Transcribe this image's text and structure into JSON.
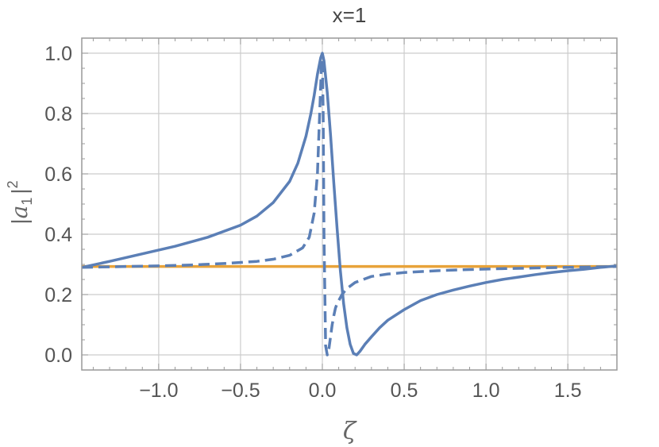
{
  "chart_data": {
    "type": "line",
    "title": "x=1",
    "xlabel": "ζ",
    "ylabel": {
      "bar_left": "|",
      "var": "a",
      "sub": "1",
      "bar_right": "|",
      "sup": "2"
    },
    "xlim": [
      -1.47,
      1.8
    ],
    "ylim": [
      -0.05,
      1.05
    ],
    "xticks": [
      -1.0,
      -0.5,
      0.0,
      0.5,
      1.0,
      1.5
    ],
    "xtick_labels": [
      "−1.0",
      "−0.5",
      "0.0",
      "0.5",
      "1.0",
      "1.5"
    ],
    "yticks": [
      0.0,
      0.2,
      0.4,
      0.6,
      0.8,
      1.0
    ],
    "ytick_labels": [
      "0.0",
      "0.2",
      "0.4",
      "0.6",
      "0.8",
      "1.0"
    ],
    "grid": true,
    "series": [
      {
        "style": "solid",
        "color": "#5b7fb6",
        "x": [
          -1.47,
          -1.3,
          -1.1,
          -0.9,
          -0.7,
          -0.5,
          -0.4,
          -0.3,
          -0.2,
          -0.15,
          -0.1,
          -0.07,
          -0.05,
          -0.03,
          -0.01,
          0.0,
          0.01,
          0.03,
          0.05,
          0.07,
          0.09,
          0.11,
          0.13,
          0.15,
          0.17,
          0.19,
          0.21,
          0.23,
          0.26,
          0.3,
          0.35,
          0.4,
          0.5,
          0.6,
          0.7,
          0.8,
          0.9,
          1.0,
          1.1,
          1.2,
          1.3,
          1.4,
          1.5,
          1.6,
          1.7,
          1.8
        ],
        "y": [
          0.29,
          0.31,
          0.335,
          0.36,
          0.39,
          0.43,
          0.46,
          0.505,
          0.575,
          0.635,
          0.725,
          0.8,
          0.86,
          0.93,
          0.985,
          1.0,
          0.975,
          0.87,
          0.73,
          0.57,
          0.42,
          0.28,
          0.17,
          0.09,
          0.035,
          0.005,
          0.0,
          0.012,
          0.035,
          0.06,
          0.09,
          0.115,
          0.15,
          0.18,
          0.2,
          0.215,
          0.228,
          0.24,
          0.25,
          0.258,
          0.266,
          0.273,
          0.279,
          0.284,
          0.29,
          0.295
        ]
      },
      {
        "style": "dashed",
        "color": "#5b7fb6",
        "x": [
          -1.47,
          -1.2,
          -1.0,
          -0.8,
          -0.6,
          -0.4,
          -0.3,
          -0.2,
          -0.12,
          -0.08,
          -0.05,
          -0.03,
          -0.015,
          -0.005,
          0.0,
          0.005,
          0.01,
          0.02,
          0.03,
          0.04,
          0.05,
          0.06,
          0.07,
          0.08,
          0.09,
          0.1,
          0.12,
          0.15,
          0.2,
          0.3,
          0.4,
          0.5,
          0.7,
          0.9,
          1.1,
          1.3,
          1.5,
          1.8
        ],
        "y": [
          0.29,
          0.293,
          0.295,
          0.298,
          0.303,
          0.31,
          0.317,
          0.33,
          0.355,
          0.39,
          0.47,
          0.6,
          0.82,
          0.97,
          0.98,
          0.8,
          0.4,
          0.03,
          0.0,
          0.02,
          0.06,
          0.1,
          0.13,
          0.155,
          0.17,
          0.18,
          0.2,
          0.22,
          0.24,
          0.26,
          0.268,
          0.273,
          0.279,
          0.283,
          0.286,
          0.288,
          0.29,
          0.293
        ]
      },
      {
        "style": "solid",
        "color": "#e8a33a",
        "x": [
          -1.47,
          1.8
        ],
        "y": [
          0.293,
          0.293
        ]
      }
    ]
  },
  "colors": {
    "frame": "#999999",
    "grid": "#cccccc",
    "blue": "#5b7fb6",
    "orange": "#e8a33a"
  }
}
